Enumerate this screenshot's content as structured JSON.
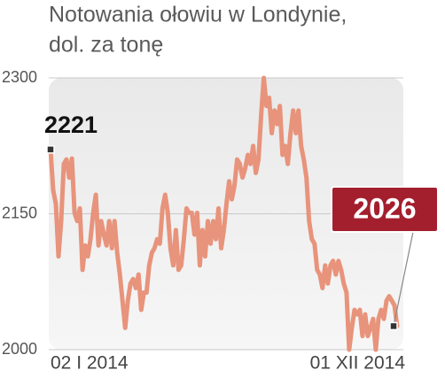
{
  "chart_data": {
    "type": "line",
    "title": "Notowania ołowiu w Londynie,",
    "subtitle": "dol. za tonę",
    "categories": [
      "02 I 2014",
      null,
      null,
      null,
      null,
      null,
      null,
      null,
      null,
      null,
      null,
      null,
      null,
      null,
      null,
      null,
      null,
      null,
      null,
      null,
      null,
      null,
      null,
      null,
      null,
      null,
      null,
      null,
      null,
      null,
      null,
      null,
      null,
      null,
      null,
      null,
      null,
      null,
      null,
      null,
      null,
      null,
      null,
      null,
      null,
      null,
      null,
      null,
      null,
      null,
      null,
      null,
      null,
      null,
      null,
      null,
      null,
      null,
      null,
      null,
      null,
      null,
      null,
      null,
      null,
      null,
      null,
      null,
      null,
      null,
      null,
      null,
      null,
      null,
      null,
      null,
      null,
      null,
      null,
      null,
      null,
      null,
      null,
      null,
      null,
      null,
      null,
      null,
      null,
      null,
      null,
      null,
      null,
      null,
      null,
      null,
      null,
      null,
      null,
      null,
      null,
      null,
      null,
      null,
      null,
      null,
      null,
      null,
      null,
      null,
      null,
      null,
      null,
      null,
      null,
      null,
      null,
      null,
      null,
      null,
      null,
      null,
      null,
      null,
      null,
      null,
      null,
      null,
      null,
      null,
      "01 XII 2014"
    ],
    "values": [
      2221,
      2176,
      2161,
      2103,
      2142,
      2205,
      2210,
      2190,
      2211,
      2151,
      2142,
      2156,
      2088,
      2115,
      2103,
      2122,
      2151,
      2171,
      2115,
      2142,
      2127,
      2115,
      2142,
      2112,
      2142,
      2107,
      2083,
      2054,
      2024,
      2054,
      2073,
      2078,
      2068,
      2083,
      2044,
      2063,
      2063,
      2093,
      2107,
      2112,
      2122,
      2117,
      2156,
      2171,
      2151,
      2112,
      2093,
      2132,
      2088,
      2093,
      2122,
      2156,
      2151,
      2151,
      2127,
      2151,
      2093,
      2132,
      2103,
      2142,
      2117,
      2142,
      2122,
      2156,
      2112,
      2132,
      2161,
      2186,
      2166,
      2181,
      2210,
      2205,
      2190,
      2200,
      2215,
      2205,
      2225,
      2195,
      2210,
      2259,
      2300,
      2269,
      2278,
      2239,
      2264,
      2249,
      2269,
      2215,
      2225,
      2205,
      2239,
      2264,
      2239,
      2264,
      2225,
      2210,
      2190,
      2142,
      2122,
      2117,
      2088,
      2083,
      2068,
      2093,
      2073,
      2093,
      2098,
      2083,
      2098,
      2088,
      2073,
      2063,
      2000,
      2024,
      2044,
      2039,
      2044,
      2015,
      2039,
      2015,
      2024,
      2034,
      2000,
      2034,
      2044,
      2034,
      2054,
      2059,
      2054,
      2049,
      2026
    ],
    "color": "#e8937b",
    "ylim": [
      2000,
      2300
    ],
    "yticks": [
      2000,
      2150,
      2300
    ],
    "grid": true
  }
}
